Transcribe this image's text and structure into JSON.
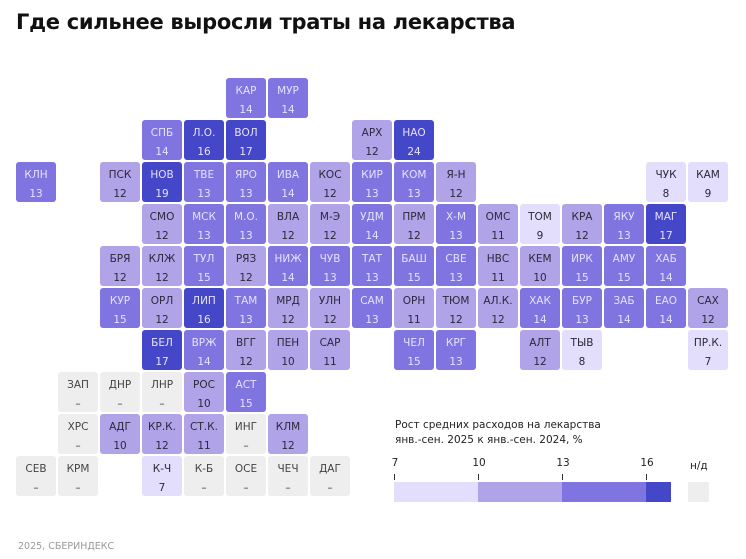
{
  "title": "Где сильнее выросли траты на лекарства",
  "footer": "2025, СБЕРИНДЕКС",
  "chart_data": {
    "type": "tile-map",
    "title": "Где сильнее выросли траты на лекарства",
    "legend": {
      "title_line1": "Рост средних расходов на лекарства",
      "title_line2": "янв.-сен. 2025 к янв.-сен. 2024, %",
      "breaks": [
        7,
        10,
        13,
        16
      ],
      "colors": [
        "#e2defb",
        "#b0a3e8",
        "#7f74e0",
        "#4447c8"
      ],
      "na_label": "н/д",
      "na_color": "#eeeeee"
    },
    "regions": [
      {
        "code": "КАР",
        "value": "14"
      },
      {
        "code": "МУР",
        "value": "14"
      },
      {
        "code": "СПБ",
        "value": "14"
      },
      {
        "code": "Л.О.",
        "value": "16"
      },
      {
        "code": "ВОЛ",
        "value": "17"
      },
      {
        "code": "АРХ",
        "value": "12"
      },
      {
        "code": "НАО",
        "value": "24"
      },
      {
        "code": "КЛН",
        "value": "13"
      },
      {
        "code": "ПСК",
        "value": "12"
      },
      {
        "code": "НОВ",
        "value": "19"
      },
      {
        "code": "ТВЕ",
        "value": "13"
      },
      {
        "code": "ЯРО",
        "value": "13"
      },
      {
        "code": "ИВА",
        "value": "14"
      },
      {
        "code": "КОС",
        "value": "12"
      },
      {
        "code": "КИР",
        "value": "13"
      },
      {
        "code": "КОМ",
        "value": "13"
      },
      {
        "code": "Я-Н",
        "value": "12"
      },
      {
        "code": "ЧУК",
        "value": "8"
      },
      {
        "code": "КАМ",
        "value": "9"
      },
      {
        "code": "СМО",
        "value": "12"
      },
      {
        "code": "МСК",
        "value": "13"
      },
      {
        "code": "М.О.",
        "value": "13"
      },
      {
        "code": "ВЛА",
        "value": "12"
      },
      {
        "code": "М-Э",
        "value": "12"
      },
      {
        "code": "УДМ",
        "value": "14"
      },
      {
        "code": "ПРМ",
        "value": "12"
      },
      {
        "code": "Х-М",
        "value": "13"
      },
      {
        "code": "ОМС",
        "value": "11"
      },
      {
        "code": "ТОМ",
        "value": "9"
      },
      {
        "code": "КРА",
        "value": "12"
      },
      {
        "code": "ЯКУ",
        "value": "13"
      },
      {
        "code": "МАГ",
        "value": "17"
      },
      {
        "code": "БРЯ",
        "value": "12"
      },
      {
        "code": "КЛЖ",
        "value": "12"
      },
      {
        "code": "ТУЛ",
        "value": "15"
      },
      {
        "code": "РЯЗ",
        "value": "12"
      },
      {
        "code": "НИЖ",
        "value": "14"
      },
      {
        "code": "ЧУВ",
        "value": "13"
      },
      {
        "code": "ТАТ",
        "value": "13"
      },
      {
        "code": "БАШ",
        "value": "15"
      },
      {
        "code": "СВЕ",
        "value": "13"
      },
      {
        "code": "НВС",
        "value": "11"
      },
      {
        "code": "КЕМ",
        "value": "10"
      },
      {
        "code": "ИРК",
        "value": "15"
      },
      {
        "code": "АМУ",
        "value": "15"
      },
      {
        "code": "ХАБ",
        "value": "14"
      },
      {
        "code": "КУР",
        "value": "15"
      },
      {
        "code": "ОРЛ",
        "value": "12"
      },
      {
        "code": "ЛИП",
        "value": "16"
      },
      {
        "code": "ТАМ",
        "value": "13"
      },
      {
        "code": "МРД",
        "value": "12"
      },
      {
        "code": "УЛН",
        "value": "12"
      },
      {
        "code": "САМ",
        "value": "13"
      },
      {
        "code": "ОРН",
        "value": "11"
      },
      {
        "code": "ТЮМ",
        "value": "12"
      },
      {
        "code": "АЛ.К.",
        "value": "12"
      },
      {
        "code": "ХАК",
        "value": "14"
      },
      {
        "code": "БУР",
        "value": "13"
      },
      {
        "code": "ЗАБ",
        "value": "14"
      },
      {
        "code": "ЕАО",
        "value": "14"
      },
      {
        "code": "САХ",
        "value": "12"
      },
      {
        "code": "БЕЛ",
        "value": "17"
      },
      {
        "code": "ВРЖ",
        "value": "14"
      },
      {
        "code": "ВГГ",
        "value": "12"
      },
      {
        "code": "ПЕН",
        "value": "10"
      },
      {
        "code": "САР",
        "value": "11"
      },
      {
        "code": "ЧЕЛ",
        "value": "15"
      },
      {
        "code": "КРГ",
        "value": "13"
      },
      {
        "code": "АЛТ",
        "value": "12"
      },
      {
        "code": "ТЫВ",
        "value": "8"
      },
      {
        "code": "ПР.К.",
        "value": "7"
      },
      {
        "code": "ЗАП",
        "value": "–"
      },
      {
        "code": "ДНР",
        "value": "–"
      },
      {
        "code": "ЛНР",
        "value": "–"
      },
      {
        "code": "РОС",
        "value": "10"
      },
      {
        "code": "АСТ",
        "value": "15"
      },
      {
        "code": "ХРС",
        "value": "–"
      },
      {
        "code": "АДГ",
        "value": "10"
      },
      {
        "code": "КР.К.",
        "value": "12"
      },
      {
        "code": "СТ.К.",
        "value": "11"
      },
      {
        "code": "ИНГ",
        "value": "–"
      },
      {
        "code": "КЛМ",
        "value": "12"
      },
      {
        "code": "СЕВ",
        "value": "–"
      },
      {
        "code": "КРМ",
        "value": "–"
      },
      {
        "code": "К-Ч",
        "value": "7"
      },
      {
        "code": "К-Б",
        "value": "–"
      },
      {
        "code": "ОСЕ",
        "value": "–"
      },
      {
        "code": "ЧЕЧ",
        "value": "–"
      },
      {
        "code": "ДАГ",
        "value": "–"
      }
    ]
  }
}
